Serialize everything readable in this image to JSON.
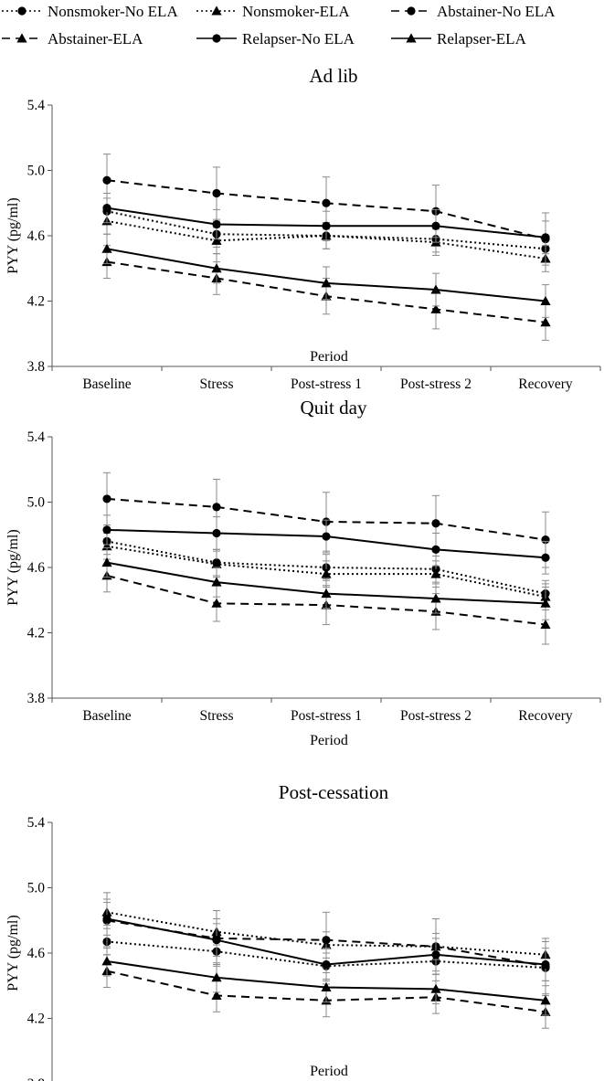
{
  "chart_data": {
    "type": "line",
    "categories": [
      "Baseline",
      "Stress",
      "Post-stress 1",
      "Post-stress 2",
      "Recovery"
    ],
    "xlabel": "Period",
    "ylabel": "PYY (pg/ml)",
    "ylim": [
      3.8,
      5.4
    ],
    "yticks": [
      "3.8",
      "4.2",
      "4.6",
      "5.0",
      "5.4"
    ],
    "legend": {
      "placement": "top",
      "entries": [
        {
          "label": "Nonsmoker-No ELA",
          "line": "dotted",
          "marker": "circle"
        },
        {
          "label": "Nonsmoker-ELA",
          "line": "dotted",
          "marker": "triangle"
        },
        {
          "label": "Abstainer-No ELA",
          "line": "dashed",
          "marker": "circle"
        },
        {
          "label": "Abstainer-ELA",
          "line": "dashed",
          "marker": "triangle"
        },
        {
          "label": "Relapser-No ELA",
          "line": "solid",
          "marker": "circle"
        },
        {
          "label": "Relapser-ELA",
          "line": "solid",
          "marker": "triangle"
        }
      ]
    },
    "panels": [
      {
        "title": "Ad lib",
        "series": [
          {
            "name": "Nonsmoker-No ELA",
            "values": [
              4.75,
              4.61,
              4.6,
              4.58,
              4.52
            ],
            "err": [
              0.08,
              0.08,
              0.08,
              0.08,
              0.08
            ]
          },
          {
            "name": "Nonsmoker-ELA",
            "values": [
              4.69,
              4.57,
              4.6,
              4.56,
              4.46
            ],
            "err": [
              0.08,
              0.08,
              0.08,
              0.08,
              0.08
            ]
          },
          {
            "name": "Abstainer-No ELA",
            "values": [
              4.94,
              4.86,
              4.8,
              4.75,
              4.58
            ],
            "err": [
              0.16,
              0.16,
              0.16,
              0.16,
              0.16
            ]
          },
          {
            "name": "Abstainer-ELA",
            "values": [
              4.44,
              4.34,
              4.23,
              4.15,
              4.07
            ],
            "err": [
              0.1,
              0.1,
              0.11,
              0.12,
              0.11
            ]
          },
          {
            "name": "Relapser-No ELA",
            "values": [
              4.77,
              4.67,
              4.66,
              4.66,
              4.59
            ],
            "err": [
              0.09,
              0.09,
              0.09,
              0.1,
              0.1
            ]
          },
          {
            "name": "Relapser-ELA",
            "values": [
              4.52,
              4.4,
              4.31,
              4.27,
              4.2
            ],
            "err": [
              0.09,
              0.09,
              0.1,
              0.1,
              0.1
            ]
          }
        ]
      },
      {
        "title": "Quit day",
        "series": [
          {
            "name": "Nonsmoker-No ELA",
            "values": [
              4.76,
              4.63,
              4.6,
              4.59,
              4.44
            ],
            "err": [
              0.08,
              0.08,
              0.08,
              0.08,
              0.08
            ]
          },
          {
            "name": "Nonsmoker-ELA",
            "values": [
              4.73,
              4.62,
              4.56,
              4.56,
              4.42
            ],
            "err": [
              0.08,
              0.08,
              0.08,
              0.08,
              0.08
            ]
          },
          {
            "name": "Abstainer-No ELA",
            "values": [
              5.02,
              4.97,
              4.88,
              4.87,
              4.77
            ],
            "err": [
              0.16,
              0.17,
              0.18,
              0.17,
              0.17
            ]
          },
          {
            "name": "Abstainer-ELA",
            "values": [
              4.55,
              4.38,
              4.37,
              4.33,
              4.25
            ],
            "err": [
              0.1,
              0.11,
              0.12,
              0.11,
              0.12
            ]
          },
          {
            "name": "Relapser-No ELA",
            "values": [
              4.83,
              4.81,
              4.79,
              4.71,
              4.66
            ],
            "err": [
              0.09,
              0.1,
              0.1,
              0.1,
              0.1
            ]
          },
          {
            "name": "Relapser-ELA",
            "values": [
              4.63,
              4.51,
              4.44,
              4.41,
              4.38
            ],
            "err": [
              0.09,
              0.09,
              0.09,
              0.09,
              0.1
            ]
          }
        ]
      },
      {
        "title": "Post-cessation",
        "series": [
          {
            "name": "Nonsmoker-No ELA",
            "values": [
              4.67,
              4.61,
              4.52,
              4.55,
              4.51
            ],
            "err": [
              0.08,
              0.08,
              0.08,
              0.08,
              0.08
            ]
          },
          {
            "name": "Nonsmoker-ELA",
            "values": [
              4.85,
              4.73,
              4.65,
              4.64,
              4.59
            ],
            "err": [
              0.08,
              0.08,
              0.08,
              0.08,
              0.08
            ]
          },
          {
            "name": "Abstainer-No ELA",
            "values": [
              4.8,
              4.69,
              4.68,
              4.64,
              4.52
            ],
            "err": [
              0.17,
              0.17,
              0.17,
              0.17,
              0.17
            ]
          },
          {
            "name": "Abstainer-ELA",
            "values": [
              4.49,
              4.34,
              4.31,
              4.33,
              4.24
            ],
            "err": [
              0.1,
              0.1,
              0.1,
              0.1,
              0.1
            ]
          },
          {
            "name": "Relapser-No ELA",
            "values": [
              4.81,
              4.68,
              4.53,
              4.59,
              4.53
            ],
            "err": [
              0.1,
              0.1,
              0.1,
              0.1,
              0.1
            ]
          },
          {
            "name": "Relapser-ELA",
            "values": [
              4.55,
              4.45,
              4.39,
              4.38,
              4.31
            ],
            "err": [
              0.09,
              0.09,
              0.09,
              0.09,
              0.09
            ]
          }
        ]
      }
    ]
  }
}
